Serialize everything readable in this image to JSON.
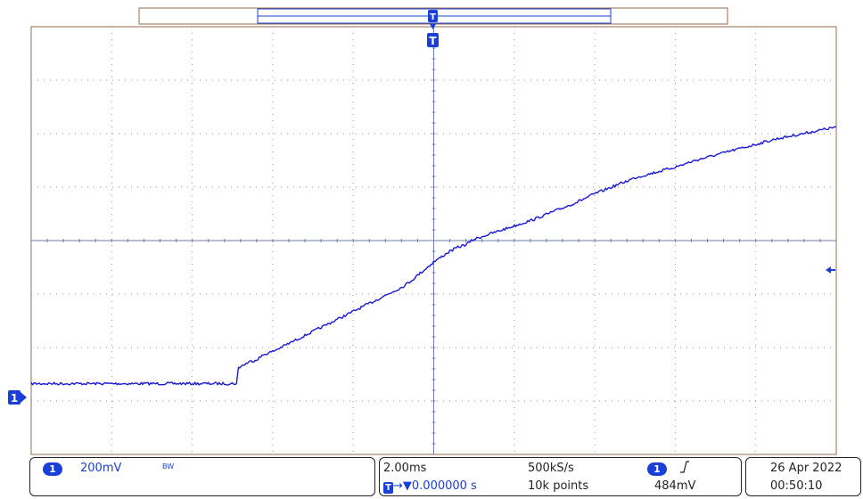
{
  "colors": {
    "trace": "#1a1ad6",
    "grid": "#8f8f8f",
    "frame": "#9a6b4b",
    "accent": "#1a3fd6"
  },
  "trigger": {
    "marker_label": "T"
  },
  "channel": {
    "marker_label": "1",
    "scale": "200mV",
    "bw_label": "BW"
  },
  "timebase": {
    "scale": "2.00ms",
    "sample_rate": "500kS/s",
    "record_length": "10k points",
    "position": "0.000000 s"
  },
  "trigger_info": {
    "source": "1",
    "slope_icon": "rising-edge-icon",
    "level": "484mV"
  },
  "datetime": {
    "date": "26 Apr 2022",
    "time": "00:50:10"
  },
  "chart_data": {
    "type": "line",
    "xlabel": "",
    "ylabel": "",
    "x_unit": "ms",
    "y_unit": "mV",
    "xlim": [
      -10,
      10
    ],
    "ylim": [
      -800,
      800
    ],
    "grid": true,
    "series": [
      {
        "x": [
          -10,
          -8,
          -6,
          -4.9,
          -4.85,
          -4.6,
          -4.4,
          -4.2,
          -4,
          -3.8,
          -3.6,
          -3.4,
          -3.2,
          -3,
          -2.8,
          -2.6,
          -2.4,
          -2.2,
          -2,
          -1.8,
          -1.6,
          -1.4,
          -1.2,
          -1,
          -0.8,
          -0.6,
          -0.4,
          -0.2,
          0,
          0.2,
          0.4,
          0.6,
          0.8,
          1,
          1.5,
          2,
          2.5,
          3,
          3.5,
          4,
          4.5,
          5,
          5.5,
          6,
          6.5,
          7,
          7.5,
          8,
          8.5,
          9,
          9.5,
          10
        ],
        "y": [
          -535,
          -535,
          -535,
          -535,
          -475,
          -455,
          -445,
          -425,
          -415,
          -400,
          -385,
          -370,
          -355,
          -340,
          -325,
          -310,
          -295,
          -280,
          -265,
          -250,
          -235,
          -220,
          -205,
          -190,
          -175,
          -155,
          -130,
          -105,
          -80,
          -60,
          -40,
          -25,
          -15,
          5,
          30,
          55,
          80,
          110,
          140,
          175,
          205,
          235,
          255,
          275,
          300,
          320,
          340,
          360,
          380,
          395,
          410,
          425
        ]
      }
    ]
  }
}
